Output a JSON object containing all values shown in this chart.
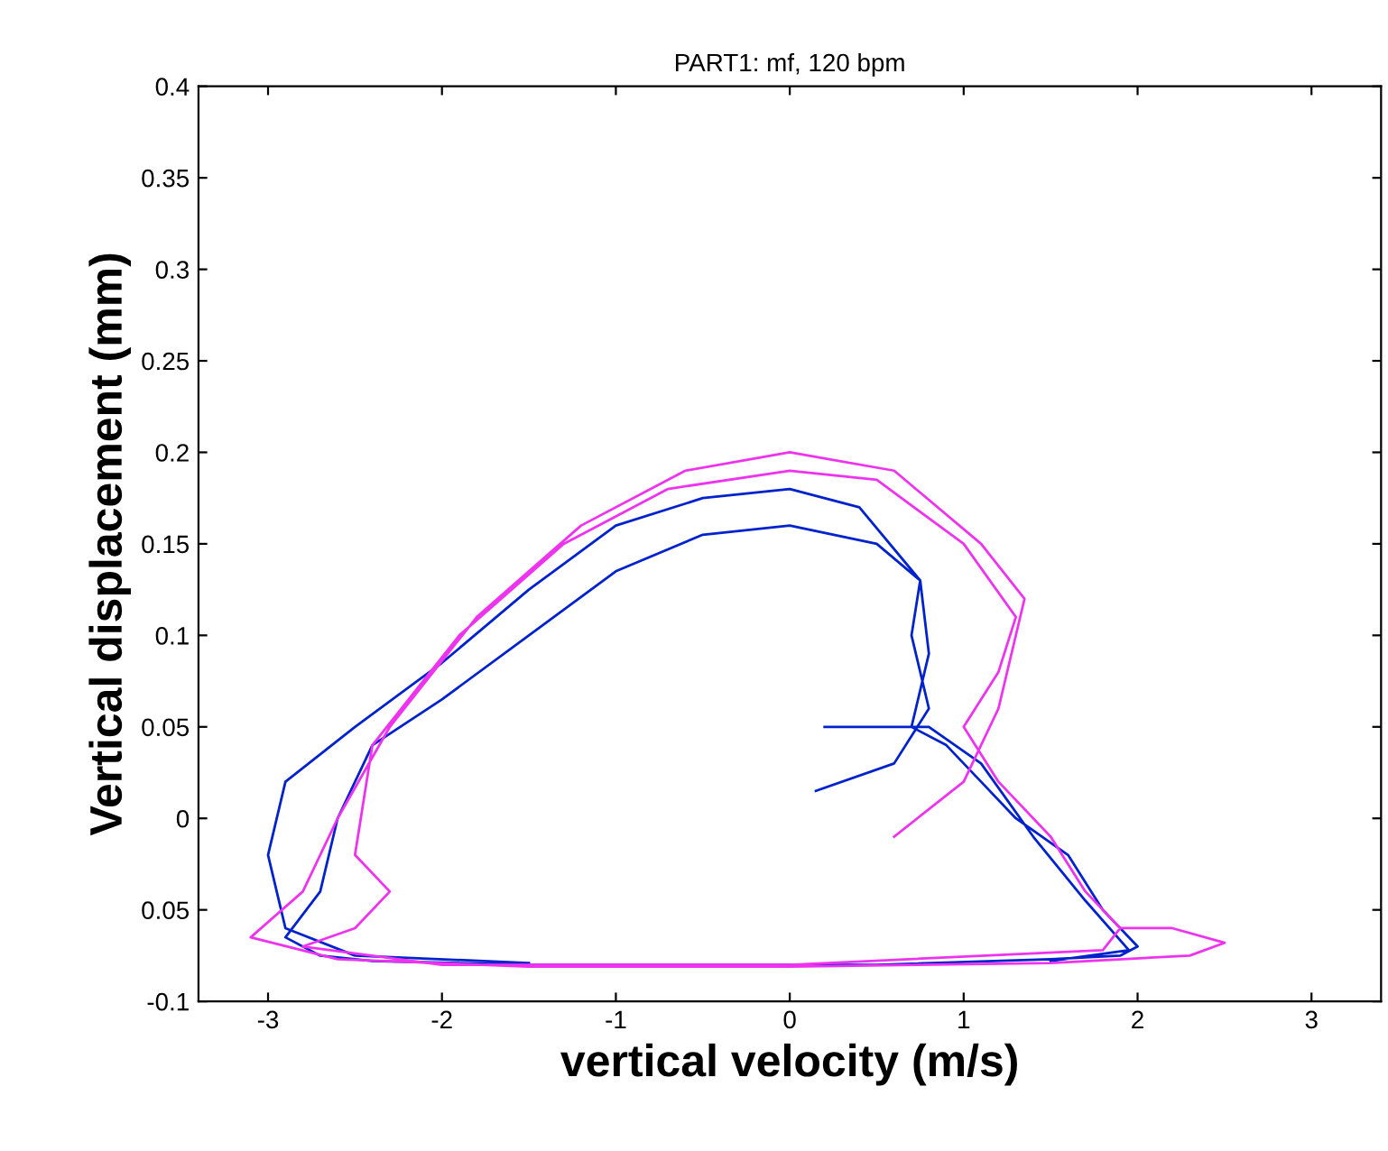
{
  "chart_data": {
    "type": "line",
    "title": "PART1: mf, 120 bpm",
    "xlabel": "vertical velocity (m/s)",
    "ylabel": "Vertical displacement (mm)",
    "xlim": [
      -3.4,
      3.4
    ],
    "ylim": [
      -0.1,
      0.4
    ],
    "xticks": [
      -3,
      -2,
      -1,
      0,
      1,
      2,
      3
    ],
    "yticks": [
      -0.1,
      {
        "value": -0.05,
        "label": "0.05"
      },
      0,
      0.05,
      0.1,
      0.15,
      0.2,
      0.25,
      0.3,
      0.35,
      0.4
    ],
    "grid": false,
    "marker": "none",
    "line_style": "solid",
    "series": [
      {
        "color": "#0022cc",
        "x": [
          0.15,
          0.6,
          0.8,
          0.7,
          0.75,
          0.5,
          0,
          -0.5,
          -1,
          -1.5,
          -2,
          -2.4,
          -2.6,
          -2.7,
          -2.9,
          -2.7,
          -2.4,
          -1.5,
          -0.5,
          0.5,
          1.5,
          1.9,
          2.0,
          1.8,
          1.6,
          1.3,
          1.1,
          0.9,
          0.7,
          0.8,
          0.75,
          0.4,
          0,
          -0.5,
          -1,
          -1.5,
          -2,
          -2.5,
          -2.9,
          -3.0,
          -2.9,
          -2.5,
          -1.5,
          0,
          1.5,
          1.95,
          1.7,
          1.4,
          1.1,
          0.8,
          0.5,
          0.2
        ],
        "values": [
          0.015,
          0.03,
          0.06,
          0.1,
          0.13,
          0.15,
          0.16,
          0.155,
          0.135,
          0.1,
          0.065,
          0.04,
          0.0,
          -0.04,
          -0.065,
          -0.075,
          -0.078,
          -0.08,
          -0.08,
          -0.08,
          -0.077,
          -0.075,
          -0.07,
          -0.05,
          -0.02,
          0.0,
          0.02,
          0.04,
          0.05,
          0.09,
          0.13,
          0.17,
          0.18,
          0.175,
          0.16,
          0.125,
          0.085,
          0.05,
          0.02,
          -0.02,
          -0.06,
          -0.075,
          -0.079,
          null,
          -0.078,
          -0.072,
          -0.045,
          -0.01,
          0.03,
          0.05,
          0.05,
          0.05
        ]
      },
      {
        "color": "#ee33ee",
        "x": [
          0.6,
          1.0,
          1.2,
          1.35,
          1.1,
          0.6,
          0,
          -0.6,
          -1.2,
          -1.8,
          -2.3,
          -2.6,
          -2.8,
          -3.1,
          -2.6,
          -1.5,
          0,
          1.5,
          2.3,
          2.5,
          2.2,
          1.9,
          1.7,
          1.5,
          1.2,
          1.0,
          1.2,
          1.3,
          1.0,
          0.5,
          0,
          -0.7,
          -1.3,
          -1.9,
          -2.4,
          -2.5,
          -2.3,
          -2.5,
          -2.8,
          -2,
          0,
          1.8,
          1.9
        ],
        "values": [
          -0.01,
          0.02,
          0.06,
          0.12,
          0.15,
          0.19,
          0.2,
          0.19,
          0.16,
          0.11,
          0.05,
          0.0,
          -0.04,
          -0.065,
          -0.077,
          -0.081,
          -0.081,
          -0.079,
          -0.075,
          -0.068,
          -0.06,
          -0.06,
          -0.04,
          -0.01,
          0.02,
          0.05,
          0.08,
          0.11,
          0.15,
          0.185,
          0.19,
          0.18,
          0.15,
          0.1,
          0.04,
          -0.02,
          -0.04,
          -0.06,
          -0.07,
          -0.08,
          -0.08,
          -0.072,
          -0.06
        ]
      }
    ]
  }
}
